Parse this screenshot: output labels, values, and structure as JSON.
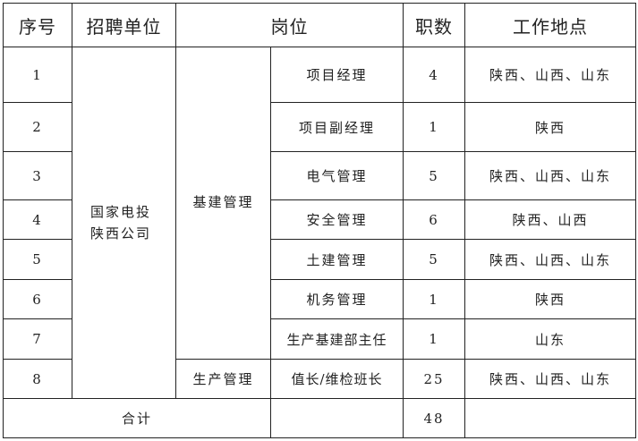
{
  "headers": {
    "index": "序号",
    "unit": "招聘单位",
    "position": "岗位",
    "count": "职数",
    "location": "工作地点"
  },
  "unit_line1": "国家电投",
  "unit_line2": "陕西公司",
  "dept_construction": "基建管理",
  "dept_production": "生产管理",
  "rows": [
    {
      "index": "1",
      "position": "项目经理",
      "count": "4",
      "location": "陕西、山西、山东"
    },
    {
      "index": "2",
      "position": "项目副经理",
      "count": "1",
      "location": "陕西"
    },
    {
      "index": "3",
      "position": "电气管理",
      "count": "5",
      "location": "陕西、山西、山东"
    },
    {
      "index": "4",
      "position": "安全管理",
      "count": "6",
      "location": "陕西、山西"
    },
    {
      "index": "5",
      "position": "土建管理",
      "count": "5",
      "location": "陕西、山西、山东"
    },
    {
      "index": "6",
      "position": "机务管理",
      "count": "1",
      "location": "陕西"
    },
    {
      "index": "7",
      "position": "生产基建部主任",
      "count": "1",
      "location": "山东"
    },
    {
      "index": "8",
      "position": "值长/维检班长",
      "count": "25",
      "location": "陕西、山西、山东"
    }
  ],
  "total": {
    "label": "合计",
    "count": "48"
  }
}
